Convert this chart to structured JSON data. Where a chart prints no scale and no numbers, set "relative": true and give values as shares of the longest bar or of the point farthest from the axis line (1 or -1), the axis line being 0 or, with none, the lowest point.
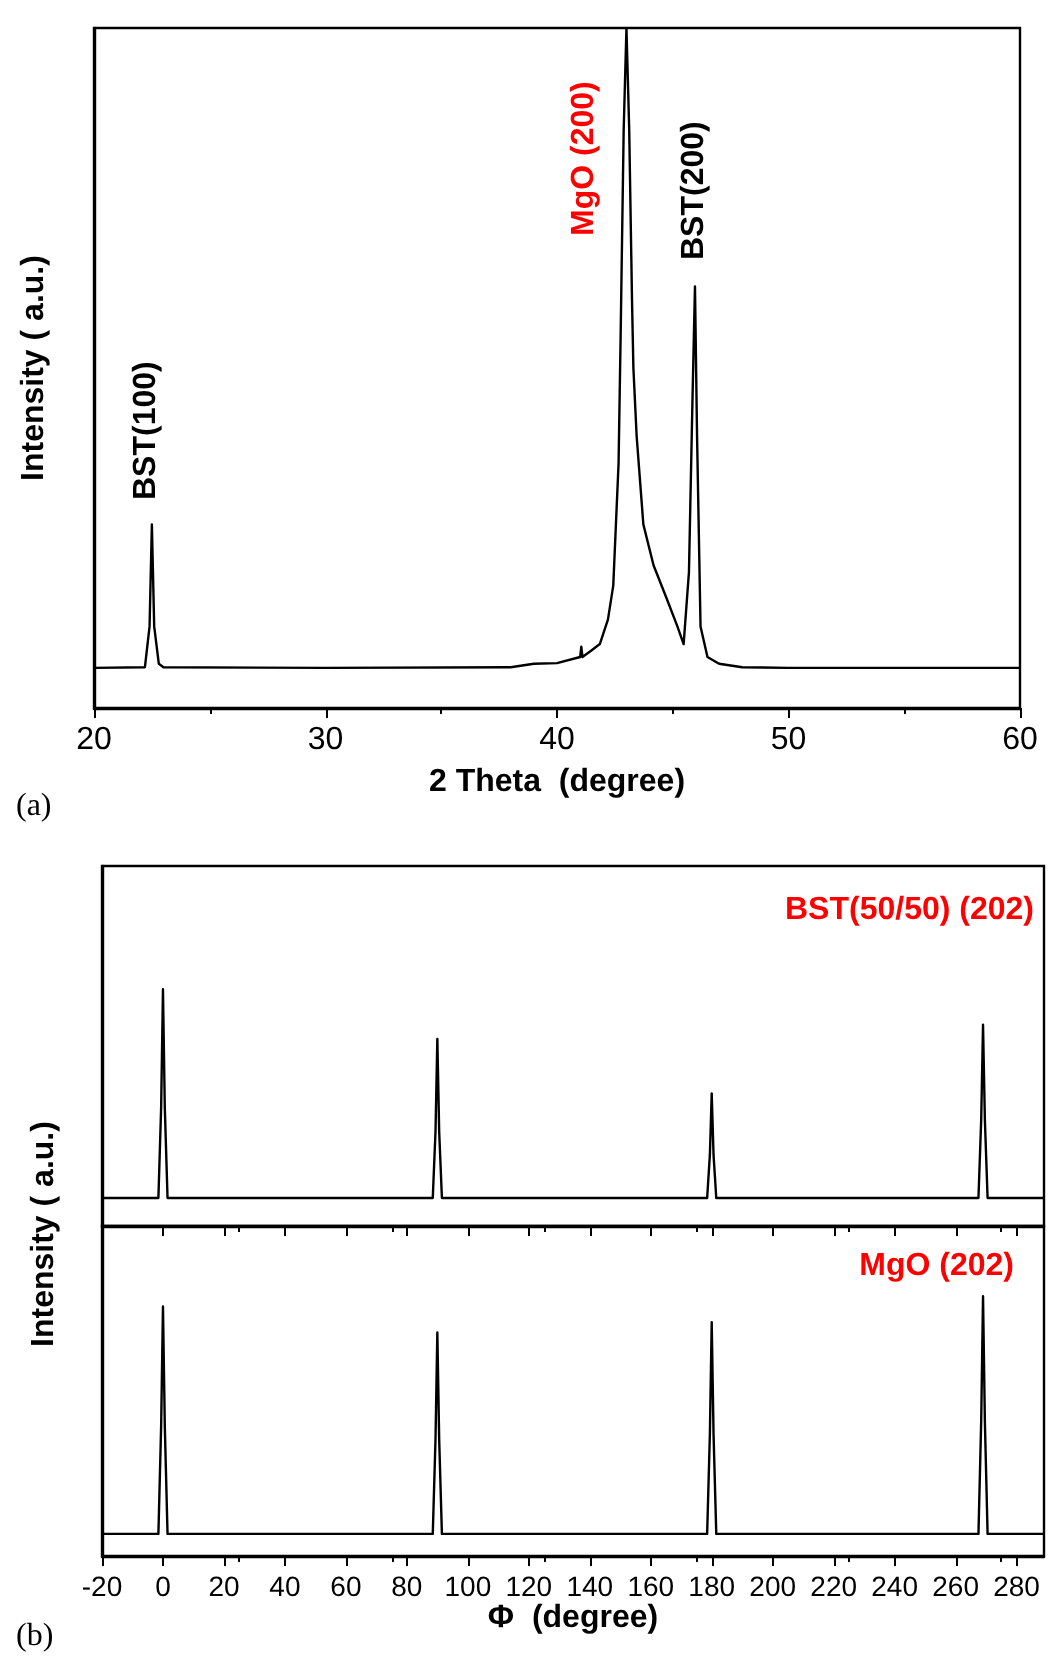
{
  "chart_data": [
    {
      "type": "line",
      "relative": true,
      "xlabel": "2 Theta  (degree)",
      "ylabel": "Intensity ( a.u.)",
      "xlim": [
        20,
        60
      ],
      "xticks": [
        20,
        30,
        40,
        50,
        60
      ],
      "tick_labels": "x",
      "grid": false,
      "marker": "none",
      "line_style": "solid",
      "series": [
        {
          "color": "#000000",
          "x": [
            20,
            22.2,
            22.4,
            22.5,
            22.6,
            22.8,
            23,
            30,
            38,
            39,
            40,
            41,
            41.05,
            41.1,
            41.5,
            41.85,
            42.2,
            42.43,
            42.66,
            42.75,
            42.88,
            43.0,
            43.12,
            43.24,
            43.3,
            43.44,
            43.73,
            44.17,
            44.75,
            45.2,
            45.47,
            45.7,
            45.85,
            45.96,
            46.05,
            46.2,
            46.5,
            47,
            48,
            50,
            60
          ],
          "values": [
            0.059,
            0.06,
            0.12,
            0.27,
            0.12,
            0.065,
            0.06,
            0.059,
            0.06,
            0.065,
            0.066,
            0.075,
            0.09,
            0.075,
            0.085,
            0.094,
            0.13,
            0.18,
            0.36,
            0.55,
            0.85,
            1,
            0.85,
            0.6,
            0.5,
            0.4,
            0.27,
            0.21,
            0.16,
            0.12,
            0.094,
            0.2,
            0.45,
            0.62,
            0.4,
            0.12,
            0.075,
            0.065,
            0.06,
            0.059,
            0.059
          ]
        }
      ],
      "annotations": [
        "BST(100)",
        "MgO (200)",
        "BST(200)",
        "(a)"
      ]
    },
    {
      "type": "line",
      "relative": true,
      "xlim": [
        -20,
        289
      ],
      "xticks": [
        -20,
        0,
        20,
        40,
        60,
        80,
        100,
        120,
        140,
        160,
        180,
        200,
        220,
        240,
        260,
        280
      ],
      "tick_labels": false,
      "grid": false,
      "marker": "none",
      "line_style": "solid",
      "series": [
        {
          "color": "#000000",
          "x": [
            -20,
            -1.5,
            -0.6,
            0,
            0.6,
            1.5,
            88.5,
            89.4,
            90,
            90.6,
            91.5,
            178.5,
            179.4,
            180,
            180.6,
            181.5,
            267.5,
            268.4,
            269,
            269.6,
            270.5,
            289
          ],
          "values": [
            0.118,
            0.118,
            0.5,
            1,
            0.5,
            0.118,
            0.118,
            0.4,
            0.79,
            0.4,
            0.118,
            0.118,
            0.3,
            0.56,
            0.3,
            0.118,
            0.118,
            0.45,
            0.85,
            0.45,
            0.118,
            0.118
          ]
        }
      ],
      "annotations": [
        "BST(50/50) (202)"
      ]
    },
    {
      "type": "line",
      "relative": true,
      "xlabel": "Φ  (degree)",
      "ylabel": "Intensity ( a.u.)",
      "xlim": [
        -20,
        289
      ],
      "xticks": [
        -20,
        0,
        20,
        40,
        60,
        80,
        100,
        120,
        140,
        160,
        180,
        200,
        220,
        240,
        260,
        280
      ],
      "tick_labels": "x",
      "grid": false,
      "marker": "none",
      "line_style": "solid",
      "series": [
        {
          "color": "#000000",
          "x": [
            -20,
            -1.5,
            -0.6,
            0,
            0.6,
            1.5,
            88.5,
            89.4,
            90,
            90.6,
            91.5,
            178.5,
            179.4,
            180,
            180.6,
            181.5,
            267.5,
            268.4,
            269,
            269.6,
            270.5,
            289
          ],
          "values": [
            0.085,
            0.085,
            0.5,
            0.96,
            0.5,
            0.085,
            0.085,
            0.45,
            0.86,
            0.45,
            0.085,
            0.085,
            0.47,
            0.9,
            0.47,
            0.085,
            0.085,
            0.52,
            1,
            0.52,
            0.085,
            0.085
          ]
        }
      ],
      "annotations": [
        "MgO (202)",
        "(b)"
      ]
    }
  ]
}
